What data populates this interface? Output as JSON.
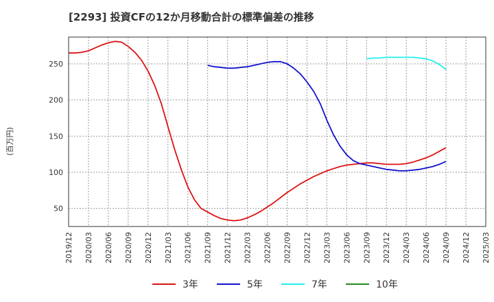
{
  "title": "[2293]  投資CFの12か月移動合計の標準偏差の推移",
  "chart_data": {
    "type": "line",
    "ylabel": "(百万円)",
    "ylim": [
      25,
      287
    ],
    "yticks": [
      50,
      100,
      150,
      200,
      250
    ],
    "xticks": [
      "2019/12",
      "2020/03",
      "2020/06",
      "2020/09",
      "2020/12",
      "2021/03",
      "2021/06",
      "2021/09",
      "2021/12",
      "2022/03",
      "2022/06",
      "2022/09",
      "2022/12",
      "2023/03",
      "2023/06",
      "2023/09",
      "2023/12",
      "2024/03",
      "2024/06",
      "2024/09",
      "2024/12",
      "2025/03"
    ],
    "grid": true,
    "legend_position": "bottom",
    "series": [
      {
        "name": "3年",
        "color": "#dd1111",
        "points": [
          [
            "2019/12",
            265
          ],
          [
            "2020/01",
            265
          ],
          [
            "2020/02",
            266
          ],
          [
            "2020/03",
            268
          ],
          [
            "2020/04",
            272
          ],
          [
            "2020/05",
            276
          ],
          [
            "2020/06",
            279
          ],
          [
            "2020/07",
            281
          ],
          [
            "2020/08",
            280
          ],
          [
            "2020/09",
            274
          ],
          [
            "2020/10",
            266
          ],
          [
            "2020/11",
            255
          ],
          [
            "2020/12",
            240
          ],
          [
            "2021/01",
            220
          ],
          [
            "2021/02",
            195
          ],
          [
            "2021/03",
            163
          ],
          [
            "2021/04",
            132
          ],
          [
            "2021/05",
            104
          ],
          [
            "2021/06",
            80
          ],
          [
            "2021/07",
            62
          ],
          [
            "2021/08",
            50
          ],
          [
            "2021/09",
            45
          ],
          [
            "2021/10",
            40
          ],
          [
            "2021/11",
            36
          ],
          [
            "2021/12",
            34
          ],
          [
            "2022/01",
            33
          ],
          [
            "2022/02",
            34
          ],
          [
            "2022/03",
            37
          ],
          [
            "2022/04",
            41
          ],
          [
            "2022/05",
            46
          ],
          [
            "2022/06",
            52
          ],
          [
            "2022/07",
            58
          ],
          [
            "2022/08",
            65
          ],
          [
            "2022/09",
            72
          ],
          [
            "2022/10",
            78
          ],
          [
            "2022/11",
            84
          ],
          [
            "2022/12",
            89
          ],
          [
            "2023/01",
            94
          ],
          [
            "2023/02",
            98
          ],
          [
            "2023/03",
            102
          ],
          [
            "2023/04",
            105
          ],
          [
            "2023/05",
            108
          ],
          [
            "2023/06",
            110
          ],
          [
            "2023/07",
            111
          ],
          [
            "2023/08",
            112
          ],
          [
            "2023/09",
            113
          ],
          [
            "2023/10",
            113
          ],
          [
            "2023/11",
            112
          ],
          [
            "2023/12",
            111
          ],
          [
            "2024/01",
            111
          ],
          [
            "2024/02",
            111
          ],
          [
            "2024/03",
            112
          ],
          [
            "2024/04",
            114
          ],
          [
            "2024/05",
            117
          ],
          [
            "2024/06",
            120
          ],
          [
            "2024/07",
            124
          ],
          [
            "2024/08",
            129
          ],
          [
            "2024/09",
            134
          ]
        ]
      },
      {
        "name": "5年",
        "color": "#1111cc",
        "points": [
          [
            "2021/09",
            248
          ],
          [
            "2021/10",
            246
          ],
          [
            "2021/11",
            245
          ],
          [
            "2021/12",
            244
          ],
          [
            "2022/01",
            244
          ],
          [
            "2022/02",
            245
          ],
          [
            "2022/03",
            246
          ],
          [
            "2022/04",
            248
          ],
          [
            "2022/05",
            250
          ],
          [
            "2022/06",
            252
          ],
          [
            "2022/07",
            253
          ],
          [
            "2022/08",
            253
          ],
          [
            "2022/09",
            250
          ],
          [
            "2022/10",
            244
          ],
          [
            "2022/11",
            236
          ],
          [
            "2022/12",
            225
          ],
          [
            "2023/01",
            212
          ],
          [
            "2023/02",
            195
          ],
          [
            "2023/03",
            172
          ],
          [
            "2023/04",
            152
          ],
          [
            "2023/05",
            136
          ],
          [
            "2023/06",
            124
          ],
          [
            "2023/07",
            116
          ],
          [
            "2023/08",
            112
          ],
          [
            "2023/09",
            110
          ],
          [
            "2023/10",
            108
          ],
          [
            "2023/11",
            106
          ],
          [
            "2023/12",
            104
          ],
          [
            "2024/01",
            103
          ],
          [
            "2024/02",
            102
          ],
          [
            "2024/03",
            102
          ],
          [
            "2024/04",
            103
          ],
          [
            "2024/05",
            104
          ],
          [
            "2024/06",
            106
          ],
          [
            "2024/07",
            108
          ],
          [
            "2024/08",
            111
          ],
          [
            "2024/09",
            115
          ]
        ]
      },
      {
        "name": "7年",
        "color": "#22eeee",
        "points": [
          [
            "2023/09",
            257
          ],
          [
            "2023/10",
            258
          ],
          [
            "2023/11",
            258
          ],
          [
            "2023/12",
            259
          ],
          [
            "2024/01",
            259
          ],
          [
            "2024/02",
            259
          ],
          [
            "2024/03",
            259
          ],
          [
            "2024/04",
            259
          ],
          [
            "2024/05",
            258
          ],
          [
            "2024/06",
            257
          ],
          [
            "2024/07",
            254
          ],
          [
            "2024/08",
            249
          ],
          [
            "2024/09",
            242
          ]
        ]
      },
      {
        "name": "10年",
        "color": "#228822",
        "points": []
      }
    ]
  }
}
